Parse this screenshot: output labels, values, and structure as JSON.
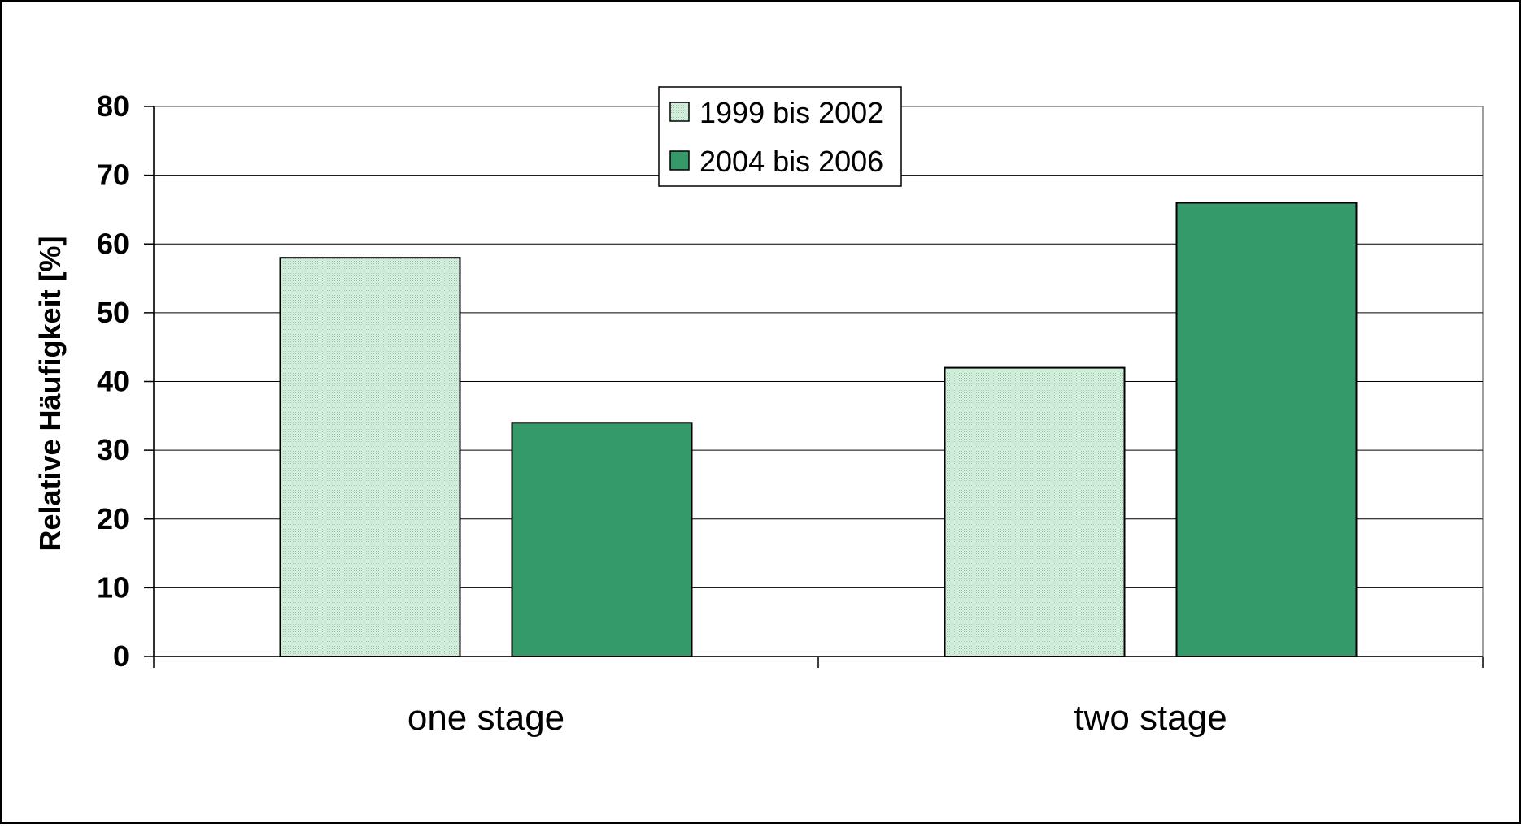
{
  "chart_data": {
    "type": "bar",
    "title": "",
    "xlabel": "",
    "ylabel": "Relative Häufigkeit [%]",
    "categories": [
      "one stage",
      "two stage"
    ],
    "series": [
      {
        "name": "1999 bis 2002",
        "values": [
          58,
          42
        ],
        "color": "#c8e8d4",
        "pattern": "fine-dotted"
      },
      {
        "name": "2004 bis 2006",
        "values": [
          34,
          66
        ],
        "color": "#359a69",
        "pattern": "solid"
      }
    ],
    "ylim": [
      0,
      80
    ],
    "yticks": [
      0,
      10,
      20,
      30,
      40,
      50,
      60,
      70,
      80
    ],
    "grid": true,
    "legend_position": "top-center"
  }
}
